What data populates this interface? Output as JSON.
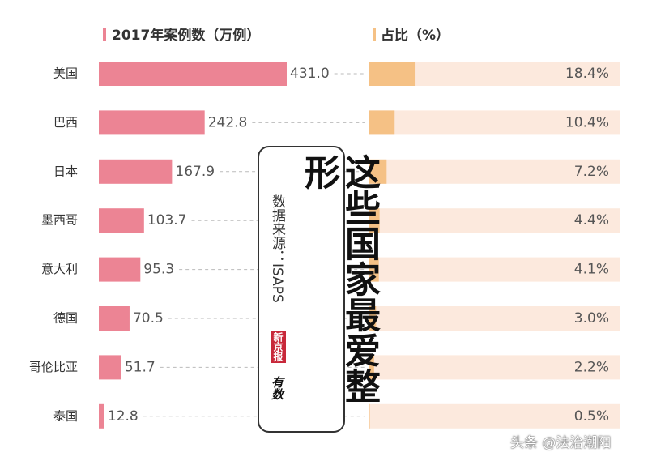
{
  "chart_data": [
    {
      "type": "bar",
      "orientation": "horizontal",
      "title": "2017年案例数（万例）",
      "categories": [
        "美国",
        "巴西",
        "日本",
        "墨西哥",
        "意大利",
        "德国",
        "哥伦比亚",
        "泰国"
      ],
      "values": [
        431,
        242.8,
        167.9,
        103.7,
        95.3,
        70.5,
        51.7,
        12.8
      ],
      "value_labels": [
        "431.0",
        "242.8",
        "167.9",
        "103.7",
        "95.3",
        "70.5",
        "51.7",
        "12.8"
      ],
      "color": "#ec8494",
      "xlim": [
        0,
        431
      ]
    },
    {
      "type": "bar",
      "orientation": "horizontal",
      "title": "占比（%）",
      "values": [
        18.4,
        10.4,
        7.2,
        4.4,
        4.1,
        3.0,
        2.2,
        0.5
      ],
      "value_labels": [
        "18.4%",
        "10.4%",
        "7.2%",
        "4.4%",
        "4.1%",
        "3.0%",
        "2.2%",
        "0.5%"
      ],
      "color": "#f5c185",
      "track_color": "#fce9dd",
      "xlim": [
        0,
        100
      ]
    }
  ],
  "title_box": {
    "title": "这些国家最爱整形",
    "source": "数据来源：ISAPS",
    "logo": [
      "新京报",
      "有数"
    ]
  },
  "watermark": "头条 @法治潮阳"
}
